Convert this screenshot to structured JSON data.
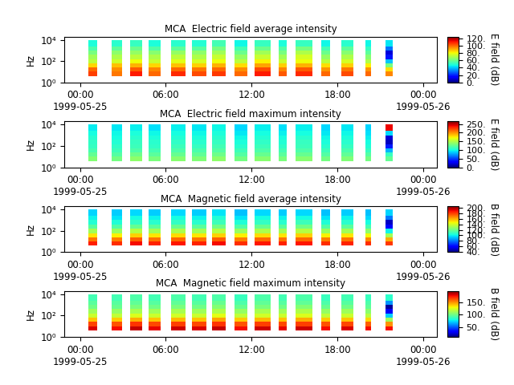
{
  "chart_data": [
    {
      "type": "heatmap",
      "title": "MCA  Electric field average intensity",
      "ylabel": "Hz",
      "log": "y",
      "xlim": [
        -1.1,
        24.95
      ],
      "xticks": [
        {
          "value": 0,
          "label": "00:00\n1999-05-25"
        },
        {
          "value": 6,
          "label": "06:00"
        },
        {
          "value": 12,
          "label": "12:00"
        },
        {
          "value": 18,
          "label": "18:00"
        },
        {
          "value": 24,
          "label": "00:00\n1999-05-26"
        }
      ],
      "ylim": [
        1,
        20000
      ],
      "yticks": [
        {
          "value": 1,
          "label": "10⁰"
        },
        {
          "value": 100,
          "label": "10²"
        },
        {
          "value": 10000,
          "label": "10⁴"
        }
      ],
      "x_segments": [
        [
          0.56,
          1.18
        ],
        [
          2.24,
          2.92
        ],
        [
          3.48,
          4.37
        ],
        [
          4.77,
          5.61
        ],
        [
          6.34,
          7.35
        ],
        [
          7.85,
          8.81
        ],
        [
          9.25,
          10.21
        ],
        [
          10.82,
          11.72
        ],
        [
          12.23,
          13.35
        ],
        [
          13.91,
          14.47
        ],
        [
          15.09,
          16.26
        ],
        [
          16.88,
          17.5
        ],
        [
          18.28,
          19.12
        ],
        [
          19.97,
          20.36
        ],
        [
          21.37,
          21.87
        ]
      ],
      "y_bins": [
        4,
        10,
        25,
        60,
        150,
        400,
        1000,
        2500,
        10000
      ],
      "cells": [
        [
          105,
          100,
          85,
          72,
          68,
          62,
          55,
          48
        ],
        [
          98,
          95,
          88,
          75,
          70,
          65,
          58,
          50
        ],
        [
          110,
          102,
          90,
          80,
          72,
          66,
          60,
          52
        ],
        [
          100,
          96,
          85,
          74,
          70,
          64,
          56,
          48
        ],
        [
          108,
          100,
          88,
          78,
          72,
          66,
          58,
          50
        ],
        [
          104,
          98,
          86,
          76,
          70,
          65,
          57,
          49
        ],
        [
          106,
          100,
          90,
          80,
          74,
          68,
          62,
          54
        ],
        [
          100,
          95,
          84,
          72,
          66,
          60,
          54,
          46
        ],
        [
          110,
          104,
          92,
          82,
          74,
          68,
          60,
          52
        ],
        [
          102,
          96,
          86,
          74,
          68,
          62,
          56,
          48
        ],
        [
          108,
          102,
          90,
          80,
          76,
          70,
          62,
          52
        ],
        [
          100,
          94,
          84,
          72,
          66,
          60,
          54,
          46
        ],
        [
          104,
          98,
          86,
          76,
          70,
          64,
          58,
          50
        ],
        [
          100,
          94,
          82,
          70,
          64,
          58,
          52,
          46
        ],
        [
          96,
          84,
          62,
          40,
          18,
          10,
          30,
          44
        ]
      ],
      "colorbar_label": "E field (dB)",
      "colorbar_range": [
        0,
        125
      ],
      "colorbar_ticks": [
        {
          "value": 0,
          "label": "0."
        },
        {
          "value": 20,
          "label": "20."
        },
        {
          "value": 40,
          "label": "40."
        },
        {
          "value": 60,
          "label": "60."
        },
        {
          "value": 80,
          "label": "80."
        },
        {
          "value": 100,
          "label": "100."
        },
        {
          "value": 120,
          "label": "120."
        }
      ]
    },
    {
      "type": "heatmap",
      "title": "MCA  Electric field maximum intensity",
      "ylabel": "Hz",
      "log": "y",
      "xlim": [
        -1.1,
        24.95
      ],
      "xticks": [
        {
          "value": 0,
          "label": "00:00\n1999-05-25"
        },
        {
          "value": 6,
          "label": "06:00"
        },
        {
          "value": 12,
          "label": "12:00"
        },
        {
          "value": 18,
          "label": "18:00"
        },
        {
          "value": 24,
          "label": "00:00\n1999-05-26"
        }
      ],
      "ylim": [
        1,
        20000
      ],
      "yticks": [
        {
          "value": 1,
          "label": "10⁰"
        },
        {
          "value": 100,
          "label": "10²"
        },
        {
          "value": 10000,
          "label": "10⁴"
        }
      ],
      "x_segments": [
        [
          0.56,
          1.18
        ],
        [
          2.24,
          2.92
        ],
        [
          3.48,
          4.37
        ],
        [
          4.77,
          5.61
        ],
        [
          6.34,
          7.35
        ],
        [
          7.85,
          8.81
        ],
        [
          9.25,
          10.21
        ],
        [
          10.82,
          11.72
        ],
        [
          12.23,
          13.35
        ],
        [
          13.91,
          14.47
        ],
        [
          15.09,
          16.26
        ],
        [
          16.88,
          17.5
        ],
        [
          18.28,
          19.12
        ],
        [
          19.97,
          20.36
        ],
        [
          21.37,
          21.87
        ]
      ],
      "y_bins": [
        4,
        10,
        25,
        60,
        150,
        400,
        1000,
        2500,
        10000
      ],
      "cells": [
        [
          135,
          125,
          115,
          110,
          108,
          105,
          100,
          95
        ],
        [
          130,
          120,
          112,
          108,
          104,
          100,
          98,
          94
        ],
        [
          138,
          128,
          118,
          112,
          110,
          106,
          102,
          96
        ],
        [
          132,
          122,
          114,
          108,
          106,
          102,
          98,
          92
        ],
        [
          136,
          126,
          118,
          112,
          108,
          104,
          100,
          96
        ],
        [
          134,
          124,
          116,
          110,
          106,
          102,
          98,
          94
        ],
        [
          138,
          128,
          120,
          114,
          110,
          106,
          102,
          98
        ],
        [
          130,
          120,
          112,
          106,
          102,
          98,
          94,
          90
        ],
        [
          136,
          126,
          118,
          112,
          108,
          104,
          100,
          96
        ],
        [
          132,
          122,
          114,
          108,
          104,
          100,
          96,
          92
        ],
        [
          136,
          126,
          118,
          112,
          110,
          106,
          100,
          96
        ],
        [
          130,
          120,
          112,
          106,
          102,
          98,
          94,
          90
        ],
        [
          134,
          124,
          116,
          110,
          106,
          102,
          98,
          94
        ],
        [
          130,
          120,
          110,
          104,
          100,
          96,
          92,
          88
        ],
        [
          125,
          110,
          80,
          40,
          15,
          20,
          90,
          240
        ]
      ],
      "colorbar_label": "E field (dB)",
      "colorbar_range": [
        0,
        265
      ],
      "colorbar_ticks": [
        {
          "value": 0,
          "label": "0."
        },
        {
          "value": 50,
          "label": "50."
        },
        {
          "value": 100,
          "label": "100."
        },
        {
          "value": 150,
          "label": "150."
        },
        {
          "value": 200,
          "label": "200."
        },
        {
          "value": 250,
          "label": "250."
        }
      ]
    },
    {
      "type": "heatmap",
      "title": "MCA  Magnetic field average intensity",
      "ylabel": "Hz",
      "log": "y",
      "xlim": [
        -1.1,
        24.95
      ],
      "xticks": [
        {
          "value": 0,
          "label": "00:00\n1999-05-25"
        },
        {
          "value": 6,
          "label": "06:00"
        },
        {
          "value": 12,
          "label": "12:00"
        },
        {
          "value": 18,
          "label": "18:00"
        },
        {
          "value": 24,
          "label": "00:00\n1999-05-26"
        }
      ],
      "ylim": [
        1,
        20000
      ],
      "yticks": [
        {
          "value": 1,
          "label": "10⁰"
        },
        {
          "value": 100,
          "label": "10²"
        },
        {
          "value": 10000,
          "label": "10⁴"
        }
      ],
      "x_segments": [
        [
          0.56,
          1.18
        ],
        [
          2.24,
          2.92
        ],
        [
          3.48,
          4.37
        ],
        [
          4.77,
          5.61
        ],
        [
          6.34,
          7.35
        ],
        [
          7.85,
          8.81
        ],
        [
          9.25,
          10.21
        ],
        [
          10.82,
          11.72
        ],
        [
          12.23,
          13.35
        ],
        [
          13.91,
          14.47
        ],
        [
          15.09,
          16.26
        ],
        [
          16.88,
          17.5
        ],
        [
          18.28,
          19.12
        ],
        [
          19.97,
          20.36
        ],
        [
          21.37,
          21.87
        ]
      ],
      "y_bins": [
        4,
        10,
        25,
        60,
        150,
        400,
        1000,
        2500,
        10000
      ],
      "cells": [
        [
          185,
          170,
          150,
          130,
          115,
          105,
          100,
          95
        ],
        [
          182,
          168,
          148,
          128,
          114,
          104,
          98,
          94
        ],
        [
          188,
          174,
          154,
          134,
          118,
          108,
          102,
          96
        ],
        [
          184,
          170,
          150,
          130,
          116,
          106,
          100,
          94
        ],
        [
          186,
          172,
          152,
          132,
          118,
          108,
          102,
          96
        ],
        [
          184,
          170,
          150,
          130,
          116,
          106,
          100,
          94
        ],
        [
          188,
          174,
          154,
          134,
          120,
          110,
          104,
          98
        ],
        [
          182,
          168,
          148,
          128,
          114,
          104,
          98,
          92
        ],
        [
          186,
          172,
          152,
          132,
          118,
          108,
          102,
          96
        ],
        [
          184,
          170,
          150,
          130,
          116,
          106,
          100,
          94
        ],
        [
          186,
          172,
          154,
          134,
          120,
          110,
          102,
          96
        ],
        [
          182,
          168,
          148,
          128,
          114,
          104,
          98,
          92
        ],
        [
          184,
          170,
          150,
          130,
          116,
          106,
          100,
          94
        ],
        [
          182,
          166,
          146,
          126,
          112,
          102,
          96,
          92
        ],
        [
          180,
          160,
          130,
          100,
          60,
          50,
          80,
          95
        ]
      ],
      "colorbar_label": "B field (dB)",
      "colorbar_range": [
        40,
        205
      ],
      "colorbar_ticks": [
        {
          "value": 40,
          "label": "40."
        },
        {
          "value": 60,
          "label": "60."
        },
        {
          "value": 80,
          "label": "80."
        },
        {
          "value": 100,
          "label": "100."
        },
        {
          "value": 120,
          "label": "120."
        },
        {
          "value": 140,
          "label": "140."
        },
        {
          "value": 160,
          "label": "160."
        },
        {
          "value": 180,
          "label": "180."
        },
        {
          "value": 200,
          "label": "200."
        }
      ]
    },
    {
      "type": "heatmap",
      "title": "MCA  Magnetic field maximum intensity",
      "ylabel": "Hz",
      "log": "y",
      "xlim": [
        -1.1,
        24.95
      ],
      "xticks": [
        {
          "value": 0,
          "label": "00:00\n1999-05-25"
        },
        {
          "value": 6,
          "label": "06:00"
        },
        {
          "value": 12,
          "label": "12:00"
        },
        {
          "value": 18,
          "label": "18:00"
        },
        {
          "value": 24,
          "label": "00:00\n1999-05-26"
        }
      ],
      "ylim": [
        1,
        20000
      ],
      "yticks": [
        {
          "value": 1,
          "label": "10⁰"
        },
        {
          "value": 100,
          "label": "10²"
        },
        {
          "value": 10000,
          "label": "10⁴"
        }
      ],
      "x_segments": [
        [
          0.56,
          1.18
        ],
        [
          2.24,
          2.92
        ],
        [
          3.48,
          4.37
        ],
        [
          4.77,
          5.61
        ],
        [
          6.34,
          7.35
        ],
        [
          7.85,
          8.81
        ],
        [
          9.25,
          10.21
        ],
        [
          10.82,
          11.72
        ],
        [
          12.23,
          13.35
        ],
        [
          13.91,
          14.47
        ],
        [
          15.09,
          16.26
        ],
        [
          16.88,
          17.5
        ],
        [
          18.28,
          19.12
        ],
        [
          19.97,
          20.36
        ],
        [
          21.37,
          21.87
        ]
      ],
      "y_bins": [
        4,
        10,
        25,
        60,
        150,
        400,
        1000,
        2500,
        10000
      ],
      "cells": [
        [
          180,
          165,
          140,
          120,
          110,
          100,
          95,
          90
        ],
        [
          176,
          162,
          138,
          118,
          108,
          98,
          94,
          90
        ],
        [
          184,
          168,
          144,
          124,
          112,
          102,
          96,
          92
        ],
        [
          178,
          164,
          140,
          120,
          110,
          100,
          94,
          90
        ],
        [
          182,
          166,
          142,
          122,
          112,
          102,
          96,
          92
        ],
        [
          180,
          164,
          140,
          120,
          110,
          100,
          94,
          90
        ],
        [
          184,
          168,
          146,
          126,
          114,
          104,
          98,
          92
        ],
        [
          176,
          162,
          138,
          118,
          108,
          98,
          92,
          88
        ],
        [
          182,
          166,
          142,
          122,
          112,
          102,
          96,
          92
        ],
        [
          178,
          164,
          140,
          120,
          110,
          100,
          94,
          90
        ],
        [
          182,
          166,
          144,
          124,
          114,
          104,
          96,
          92
        ],
        [
          176,
          162,
          138,
          118,
          108,
          98,
          92,
          88
        ],
        [
          180,
          164,
          140,
          120,
          110,
          100,
          94,
          90
        ],
        [
          176,
          160,
          136,
          116,
          106,
          96,
          92,
          88
        ],
        [
          175,
          150,
          110,
          70,
          30,
          15,
          60,
          85
        ]
      ],
      "colorbar_label": "B field (dB)",
      "colorbar_range": [
        10,
        195
      ],
      "colorbar_ticks": [
        {
          "value": 50,
          "label": "50."
        },
        {
          "value": 100,
          "label": "100."
        },
        {
          "value": 150,
          "label": "150."
        }
      ]
    }
  ]
}
